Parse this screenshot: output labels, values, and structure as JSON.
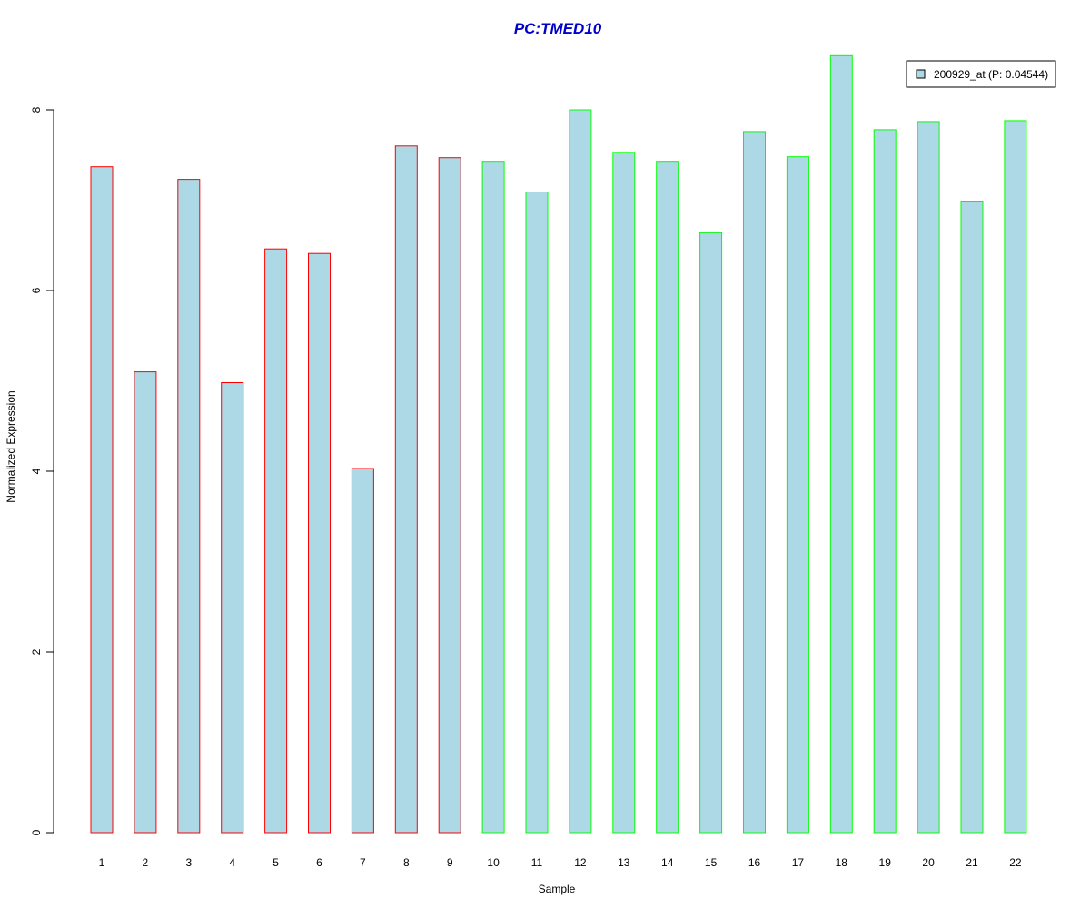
{
  "chart_data": {
    "type": "bar",
    "title": "PC:TMED10",
    "xlabel": "Sample",
    "ylabel": "Normalized Expression",
    "categories": [
      "1",
      "2",
      "3",
      "4",
      "5",
      "6",
      "7",
      "8",
      "9",
      "10",
      "11",
      "12",
      "13",
      "14",
      "15",
      "16",
      "17",
      "18",
      "19",
      "20",
      "21",
      "22"
    ],
    "series": [
      {
        "name": "200929_at (P: 0.04544)",
        "values": [
          7.37,
          5.1,
          7.23,
          4.98,
          6.46,
          6.41,
          4.03,
          7.6,
          7.47,
          7.43,
          7.09,
          8.0,
          7.53,
          7.43,
          6.64,
          7.76,
          7.48,
          8.6,
          7.78,
          7.87,
          6.99,
          7.88
        ]
      }
    ],
    "group_outline": [
      "red",
      "red",
      "red",
      "red",
      "red",
      "red",
      "red",
      "red",
      "red",
      "green",
      "green",
      "green",
      "green",
      "green",
      "green",
      "green",
      "green",
      "green",
      "green",
      "green",
      "green",
      "green"
    ],
    "yticks": [
      0,
      2,
      4,
      6,
      8
    ],
    "ylim": [
      0,
      8.6
    ],
    "legend_position": "top-right",
    "grid": false,
    "colors": {
      "bar_fill": "#add8e6",
      "outline_red": "#ff0000",
      "outline_green": "#00ff00",
      "title": "#0000cd",
      "legend_border": "#000000"
    }
  }
}
